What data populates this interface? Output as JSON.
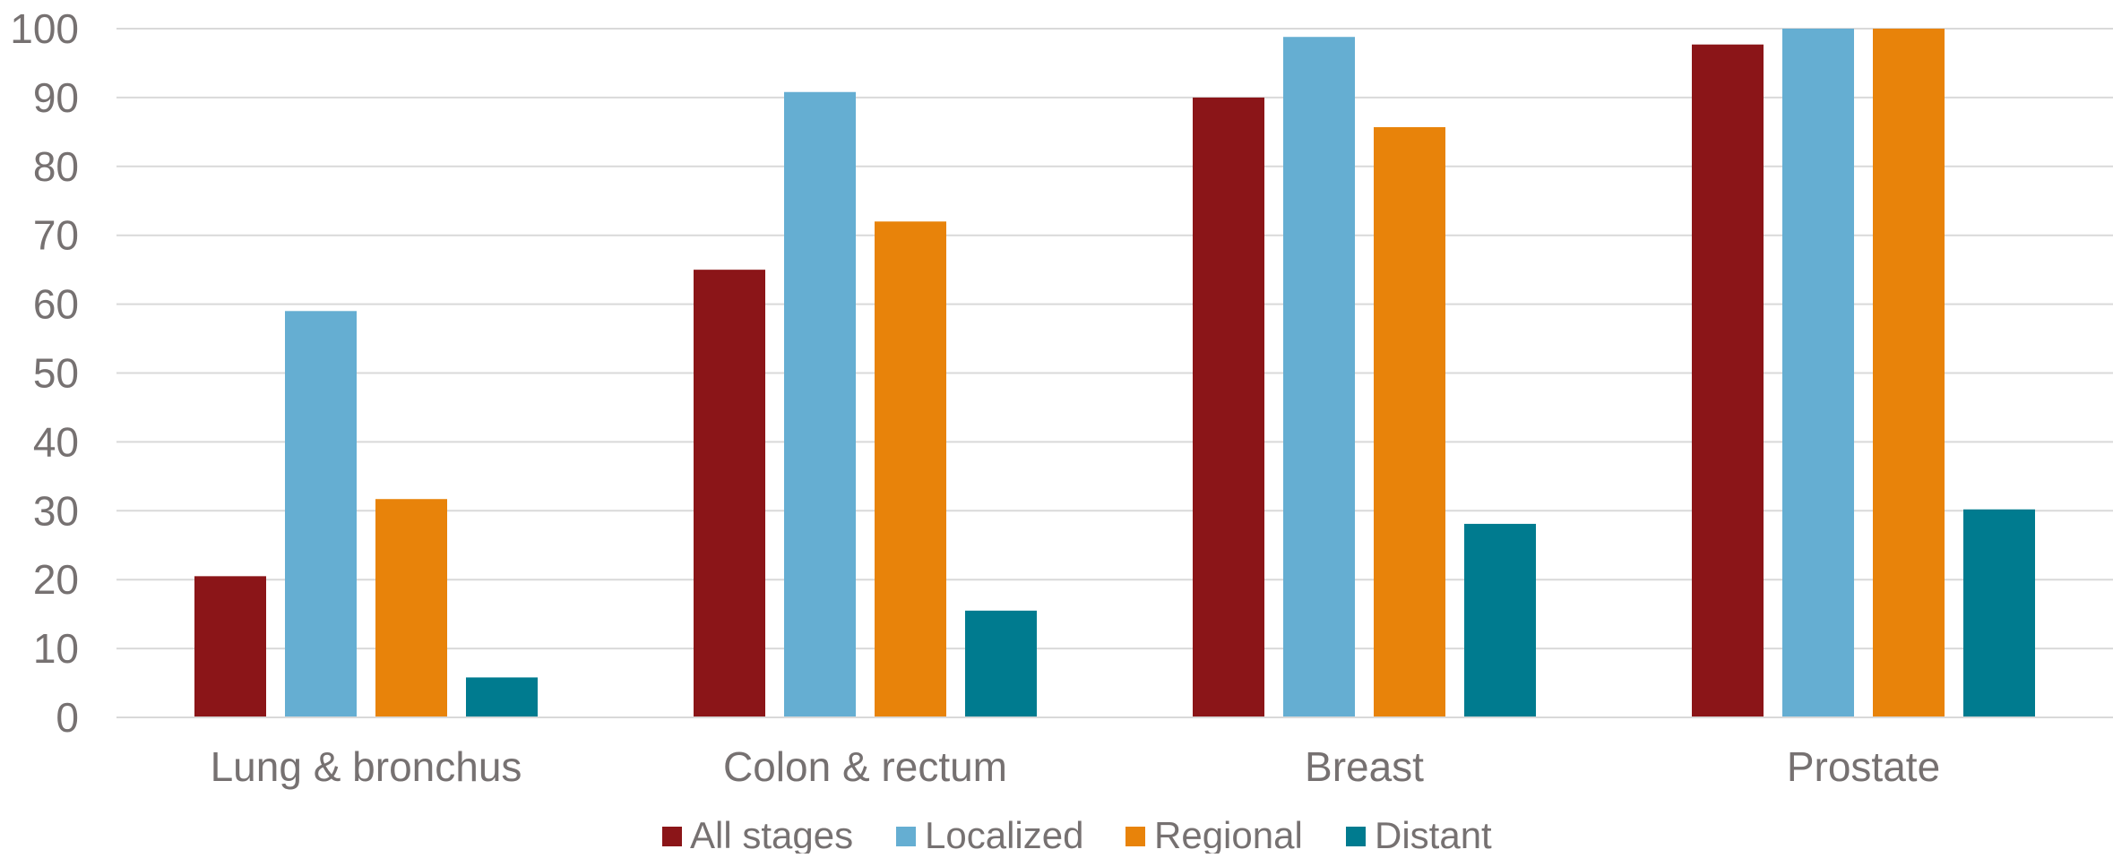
{
  "chart_data": {
    "type": "bar",
    "title": "",
    "xlabel": "",
    "ylabel": "",
    "ylim": [
      0,
      100
    ],
    "yticks": [
      0,
      10,
      20,
      30,
      40,
      50,
      60,
      70,
      80,
      90,
      100
    ],
    "grid": true,
    "legend_position": "bottom",
    "categories": [
      "Lung & bronchus",
      "Colon & rectum",
      "Breast",
      "Prostate"
    ],
    "series": [
      {
        "name": "All stages",
        "color": "#8B1518",
        "values": [
          20.5,
          65,
          90,
          97.7
        ]
      },
      {
        "name": "Localized",
        "color": "#65AED2",
        "values": [
          59,
          90.8,
          98.8,
          100
        ]
      },
      {
        "name": "Regional",
        "color": "#E8830A",
        "values": [
          31.7,
          72,
          85.7,
          100
        ]
      },
      {
        "name": "Distant",
        "color": "#007B8F",
        "values": [
          5.8,
          15.5,
          28.1,
          30.2
        ]
      }
    ]
  }
}
